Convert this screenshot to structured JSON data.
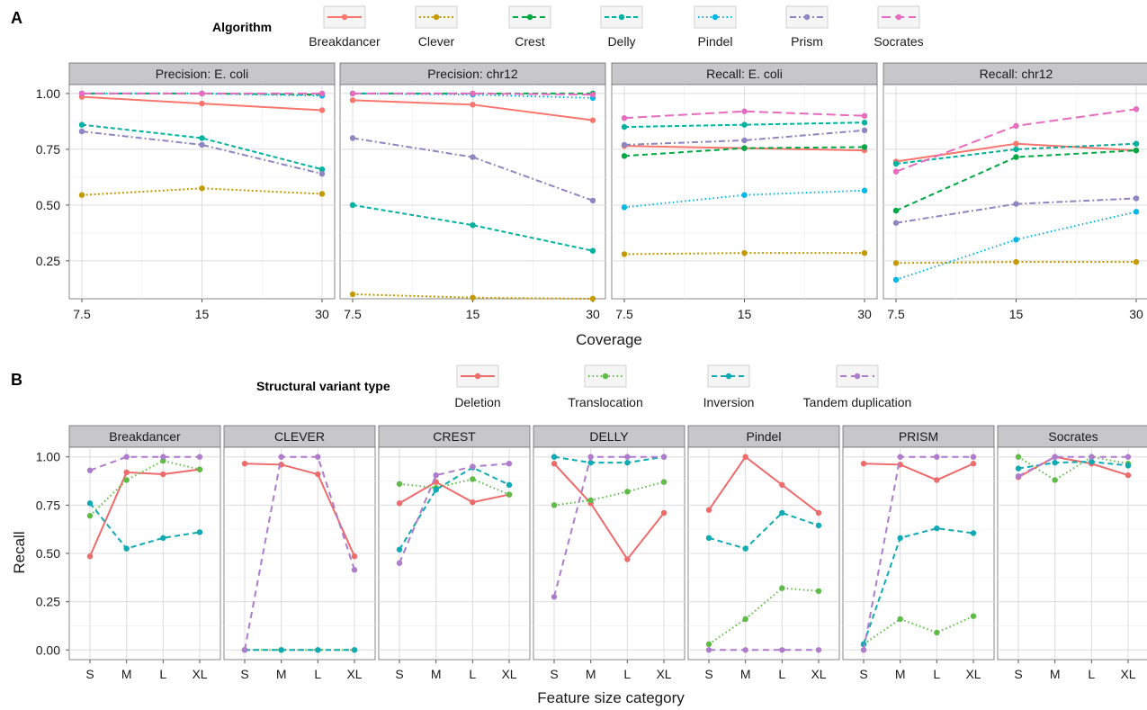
{
  "chart_data": [
    {
      "id": "A",
      "panel_label": "A",
      "type": "line",
      "legend_title": "Algorithm",
      "legend_position": "top",
      "xlabel": "Coverage",
      "ylabel": "",
      "x": [
        7.5,
        15,
        30
      ],
      "x_tick_labels": [
        "7.5",
        "15",
        "30"
      ],
      "x_scale": "log",
      "ylim": [
        0.08,
        1.04
      ],
      "y_ticks": [
        0.25,
        0.5,
        0.75,
        1.0
      ],
      "y_tick_labels": [
        "0.25",
        "0.50",
        "0.75",
        "1.00"
      ],
      "grid": true,
      "series_styles": [
        {
          "name": "Breakdancer",
          "color": "#F8766D",
          "dash": "solid"
        },
        {
          "name": "Clever",
          "color": "#C49A00",
          "dash": "dotted-short"
        },
        {
          "name": "Crest",
          "color": "#00A843",
          "dash": "dashed"
        },
        {
          "name": "Delly",
          "color": "#00B2A0",
          "dash": "dashed-short"
        },
        {
          "name": "Pindel",
          "color": "#00B8E7",
          "dash": "dotted"
        },
        {
          "name": "Prism",
          "color": "#8E86C1",
          "dash": "dashdot"
        },
        {
          "name": "Socrates",
          "color": "#E76BBF",
          "dash": "longdash"
        }
      ],
      "facets": [
        {
          "title": "Precision: E. coli",
          "series": [
            {
              "name": "Breakdancer",
              "values": [
                0.985,
                0.955,
                0.925
              ]
            },
            {
              "name": "Clever",
              "values": [
                0.545,
                0.575,
                0.55
              ]
            },
            {
              "name": "Crest",
              "values": [
                1.0,
                1.0,
                0.995
              ]
            },
            {
              "name": "Delly",
              "values": [
                0.86,
                0.8,
                0.66
              ]
            },
            {
              "name": "Pindel",
              "values": [
                1.0,
                1.0,
                0.99
              ]
            },
            {
              "name": "Prism",
              "values": [
                0.83,
                0.77,
                0.64
              ]
            },
            {
              "name": "Socrates",
              "values": [
                1.0,
                1.0,
                1.0
              ]
            }
          ]
        },
        {
          "title": "Precision: chr12",
          "series": [
            {
              "name": "Breakdancer",
              "values": [
                0.97,
                0.95,
                0.88
              ]
            },
            {
              "name": "Clever",
              "values": [
                0.1,
                0.085,
                0.08
              ]
            },
            {
              "name": "Crest",
              "values": [
                1.0,
                1.0,
                1.0
              ]
            },
            {
              "name": "Delly",
              "values": [
                0.5,
                0.41,
                0.295
              ]
            },
            {
              "name": "Pindel",
              "values": [
                1.0,
                0.995,
                0.98
              ]
            },
            {
              "name": "Prism",
              "values": [
                0.8,
                0.715,
                0.52
              ]
            },
            {
              "name": "Socrates",
              "values": [
                1.0,
                1.0,
                0.995
              ]
            }
          ]
        },
        {
          "title": "Recall: E. coli",
          "series": [
            {
              "name": "Breakdancer",
              "values": [
                0.765,
                0.755,
                0.745
              ]
            },
            {
              "name": "Clever",
              "values": [
                0.28,
                0.285,
                0.285
              ]
            },
            {
              "name": "Crest",
              "values": [
                0.72,
                0.755,
                0.76
              ]
            },
            {
              "name": "Delly",
              "values": [
                0.85,
                0.86,
                0.87
              ]
            },
            {
              "name": "Pindel",
              "values": [
                0.49,
                0.545,
                0.565
              ]
            },
            {
              "name": "Prism",
              "values": [
                0.77,
                0.79,
                0.835
              ]
            },
            {
              "name": "Socrates",
              "values": [
                0.89,
                0.92,
                0.9
              ]
            }
          ]
        },
        {
          "title": "Recall: chr12",
          "series": [
            {
              "name": "Breakdancer",
              "values": [
                0.695,
                0.775,
                0.745
              ]
            },
            {
              "name": "Clever",
              "values": [
                0.24,
                0.245,
                0.245
              ]
            },
            {
              "name": "Crest",
              "values": [
                0.475,
                0.715,
                0.745
              ]
            },
            {
              "name": "Delly",
              "values": [
                0.685,
                0.75,
                0.775
              ]
            },
            {
              "name": "Pindel",
              "values": [
                0.165,
                0.345,
                0.47
              ]
            },
            {
              "name": "Prism",
              "values": [
                0.42,
                0.505,
                0.53
              ]
            },
            {
              "name": "Socrates",
              "values": [
                0.65,
                0.855,
                0.93
              ]
            }
          ]
        }
      ]
    },
    {
      "id": "B",
      "panel_label": "B",
      "type": "line",
      "legend_title": "Structural variant type",
      "legend_position": "top",
      "xlabel": "Feature size category",
      "ylabel": "Recall",
      "categories": [
        "S",
        "M",
        "L",
        "XL"
      ],
      "ylim": [
        -0.05,
        1.05
      ],
      "y_ticks": [
        0,
        0.25,
        0.5,
        0.75,
        1.0
      ],
      "y_tick_labels": [
        "0.00",
        "0.25",
        "0.50",
        "0.75",
        "1.00"
      ],
      "grid": true,
      "series_styles": [
        {
          "name": "Deletion",
          "color": "#F8766D",
          "dash": "solid"
        },
        {
          "name": "Translocation",
          "color": "#7CAE00",
          "dash": "dotted"
        },
        {
          "name": "Inversion",
          "color": "#00BFC4",
          "dash": "dashed"
        },
        {
          "name": "Tandem duplication",
          "color": "#C77CFF",
          "dash": "dashed-wide"
        }
      ],
      "series_colors_drawn": {
        "Deletion": "#EE6B6B",
        "Translocation": "#5DBB46",
        "Inversion": "#0FAAB4",
        "Tandem duplication": "#AE7CCB"
      },
      "facets": [
        {
          "title": "Breakdancer",
          "series": [
            {
              "name": "Deletion",
              "values": [
                0.485,
                0.92,
                0.91,
                0.935
              ]
            },
            {
              "name": "Translocation",
              "values": [
                0.695,
                0.88,
                0.98,
                0.935
              ]
            },
            {
              "name": "Inversion",
              "values": [
                0.76,
                0.525,
                0.58,
                0.61
              ]
            },
            {
              "name": "Tandem duplication",
              "values": [
                0.93,
                1.0,
                1.0,
                1.0
              ]
            }
          ]
        },
        {
          "title": "CLEVER",
          "series": [
            {
              "name": "Deletion",
              "values": [
                0.965,
                0.96,
                0.91,
                0.485
              ]
            },
            {
              "name": "Translocation",
              "values": [
                0.0,
                0.0,
                0.0,
                0.0
              ]
            },
            {
              "name": "Inversion",
              "values": [
                0.0,
                0.0,
                0.0,
                0.0
              ]
            },
            {
              "name": "Tandem duplication",
              "values": [
                0.0,
                1.0,
                1.0,
                0.415
              ]
            }
          ]
        },
        {
          "title": "CREST",
          "series": [
            {
              "name": "Deletion",
              "values": [
                0.76,
                0.87,
                0.765,
                0.805
              ]
            },
            {
              "name": "Translocation",
              "values": [
                0.86,
                0.84,
                0.885,
                0.805
              ]
            },
            {
              "name": "Inversion",
              "values": [
                0.52,
                0.83,
                0.945,
                0.855
              ]
            },
            {
              "name": "Tandem duplication",
              "values": [
                0.45,
                0.905,
                0.95,
                0.965
              ]
            }
          ]
        },
        {
          "title": "DELLY",
          "series": [
            {
              "name": "Deletion",
              "values": [
                0.965,
                0.76,
                0.47,
                0.71
              ]
            },
            {
              "name": "Translocation",
              "values": [
                0.75,
                0.775,
                0.82,
                0.87
              ]
            },
            {
              "name": "Inversion",
              "values": [
                1.0,
                0.97,
                0.97,
                1.0
              ]
            },
            {
              "name": "Tandem duplication",
              "values": [
                0.275,
                1.0,
                1.0,
                1.0
              ]
            }
          ]
        },
        {
          "title": "Pindel",
          "series": [
            {
              "name": "Deletion",
              "values": [
                0.725,
                1.0,
                0.855,
                0.71
              ]
            },
            {
              "name": "Translocation",
              "values": [
                0.03,
                0.16,
                0.32,
                0.305
              ]
            },
            {
              "name": "Inversion",
              "values": [
                0.58,
                0.525,
                0.71,
                0.645
              ]
            },
            {
              "name": "Tandem duplication",
              "values": [
                0.0,
                0.0,
                0.0,
                0.0
              ]
            }
          ]
        },
        {
          "title": "PRISM",
          "series": [
            {
              "name": "Deletion",
              "values": [
                0.965,
                0.96,
                0.88,
                0.965
              ]
            },
            {
              "name": "Translocation",
              "values": [
                0.03,
                0.16,
                0.09,
                0.175
              ]
            },
            {
              "name": "Inversion",
              "values": [
                0.03,
                0.58,
                0.63,
                0.605
              ]
            },
            {
              "name": "Tandem duplication",
              "values": [
                0.0,
                1.0,
                1.0,
                1.0
              ]
            }
          ]
        },
        {
          "title": "Socrates",
          "series": [
            {
              "name": "Deletion",
              "values": [
                0.895,
                1.0,
                0.965,
                0.905
              ]
            },
            {
              "name": "Translocation",
              "values": [
                1.0,
                0.88,
                1.0,
                0.965
              ]
            },
            {
              "name": "Inversion",
              "values": [
                0.94,
                0.97,
                0.975,
                0.955
              ]
            },
            {
              "name": "Tandem duplication",
              "values": [
                0.9,
                1.0,
                1.0,
                1.0
              ]
            }
          ]
        }
      ]
    }
  ]
}
